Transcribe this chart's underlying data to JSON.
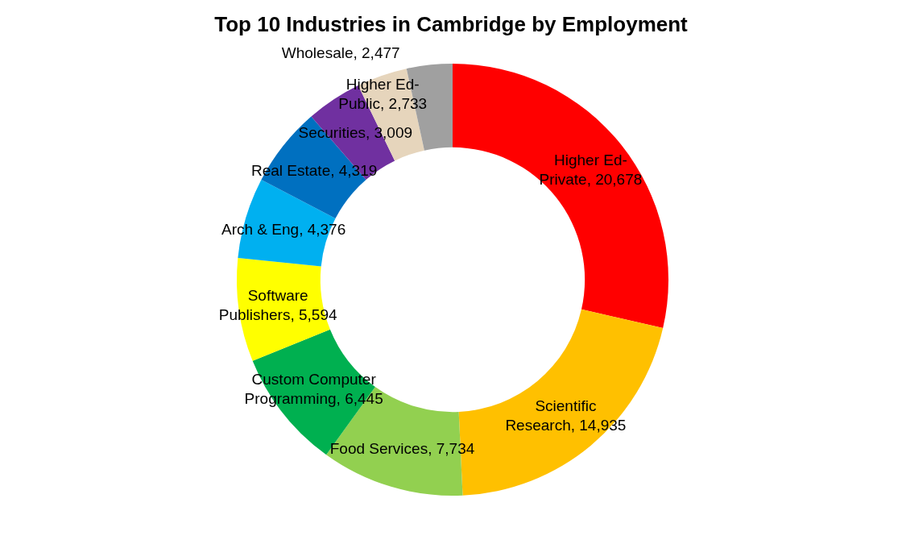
{
  "chart_data": {
    "type": "donut",
    "title": "Top 10 Industries in Cambridge by Employment",
    "categories": [
      "Higher Ed- Private",
      "Scientific Research",
      "Food Services",
      "Custom Computer Programming",
      "Software Publishers",
      "Arch & Eng",
      "Real Estate",
      "Securities",
      "Higher Ed- Public",
      "Wholesale"
    ],
    "values": [
      20678,
      14935,
      7734,
      6445,
      5594,
      4376,
      4319,
      3009,
      2733,
      2477
    ],
    "value_labels": [
      "20,678",
      "14,935",
      "7,734",
      "6,445",
      "5,594",
      "4,376",
      "4,319",
      "3,009",
      "2,733",
      "2,477"
    ],
    "colors": [
      "#ff0000",
      "#ffc000",
      "#92d050",
      "#00b050",
      "#ffff00",
      "#00b0f0",
      "#0070c0",
      "#7030a0",
      "#e6d5bc",
      "#a0a0a0"
    ],
    "legend": false
  }
}
